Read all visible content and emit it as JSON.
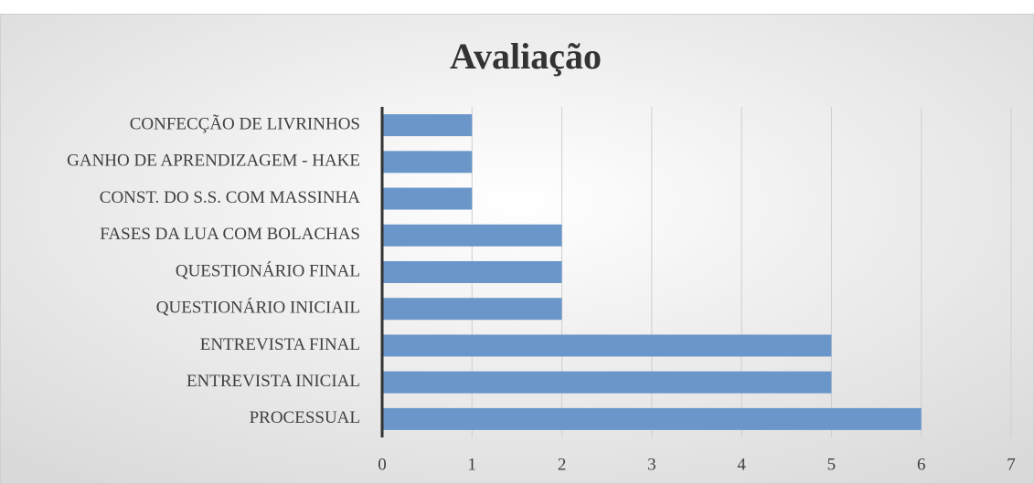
{
  "chart_data": {
    "type": "bar",
    "orientation": "horizontal",
    "title": "Avaliação",
    "categories": [
      "CONFECÇÃO DE LIVRINHOS",
      "GANHO DE APRENDIZAGEM - HAKE",
      "CONST. DO S.S. COM MASSINHA",
      "FASES DA LUA COM BOLACHAS",
      "QUESTIONÁRIO FINAL",
      "QUESTIONÁRIO INICIAIL",
      "ENTREVISTA FINAL",
      "ENTREVISTA INICIAL",
      "PROCESSUAL"
    ],
    "values": [
      1,
      1,
      1,
      2,
      2,
      2,
      5,
      5,
      6
    ],
    "color": "#6a96c9",
    "xlim": [
      0,
      7
    ],
    "xticks": [
      0,
      1,
      2,
      3,
      4,
      5,
      6,
      7
    ],
    "grid": true
  }
}
